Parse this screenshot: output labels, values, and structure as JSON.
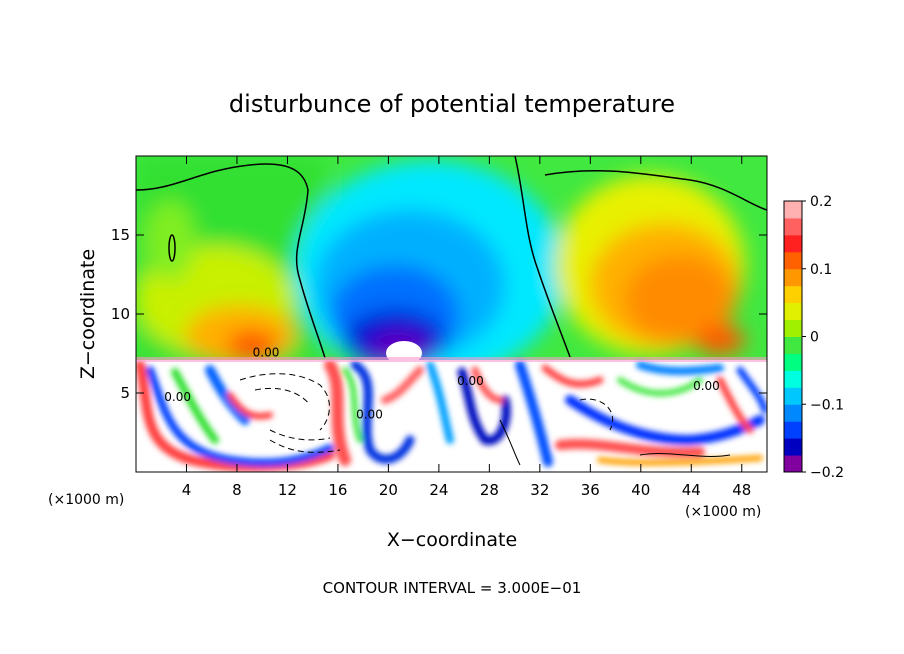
{
  "chart_data": {
    "type": "heatmap",
    "title": "disturbunce of potential temperature",
    "xlabel": "X−coordinate",
    "ylabel": "Z−coordinate",
    "x_unit_left": "(×1000 m)",
    "x_unit_right": "(×1000 m)",
    "footer": "CONTOUR INTERVAL = 3.000E−01",
    "xlim": [
      0,
      50
    ],
    "ylim": [
      0,
      20
    ],
    "x_ticks": [
      4,
      8,
      12,
      16,
      20,
      24,
      28,
      32,
      36,
      40,
      44,
      48
    ],
    "y_ticks": [
      5,
      10,
      15
    ],
    "colorbar": {
      "range": [
        -0.2,
        0.2
      ],
      "ticks": [
        {
          "value": 0.2,
          "label": "0.2"
        },
        {
          "value": 0.1,
          "label": "0.1"
        },
        {
          "value": 0.0,
          "label": "0"
        },
        {
          "value": -0.1,
          "label": "−0.1"
        },
        {
          "value": -0.2,
          "label": "−0.2"
        }
      ],
      "colors": [
        "#8000a0",
        "#0000c0",
        "#0040ff",
        "#0088ff",
        "#00c8ff",
        "#00ffe0",
        "#00ff80",
        "#40e840",
        "#a0f000",
        "#e0f000",
        "#ffd000",
        "#ff9800",
        "#ff6000",
        "#ff2020",
        "#ff6060",
        "#ffb0b0"
      ]
    },
    "contour_labels": [
      {
        "text": "0.00",
        "x": 10.3,
        "z": 7.3
      },
      {
        "text": "0.00",
        "x": 3.3,
        "z": 4.5
      },
      {
        "text": "0.00",
        "x": 26.5,
        "z": 5.5
      },
      {
        "text": "0.00",
        "x": 45.2,
        "z": 5.2
      },
      {
        "text": "0.00",
        "x": 18.5,
        "z": 3.4
      }
    ],
    "field_description": "upper layer: blue negative anomaly centred near x=20-24, z=8-16; positive orange anomalies near x=8-12 and x=38-46; lower turbulent layer below z~7 with white (out of range) regions"
  }
}
